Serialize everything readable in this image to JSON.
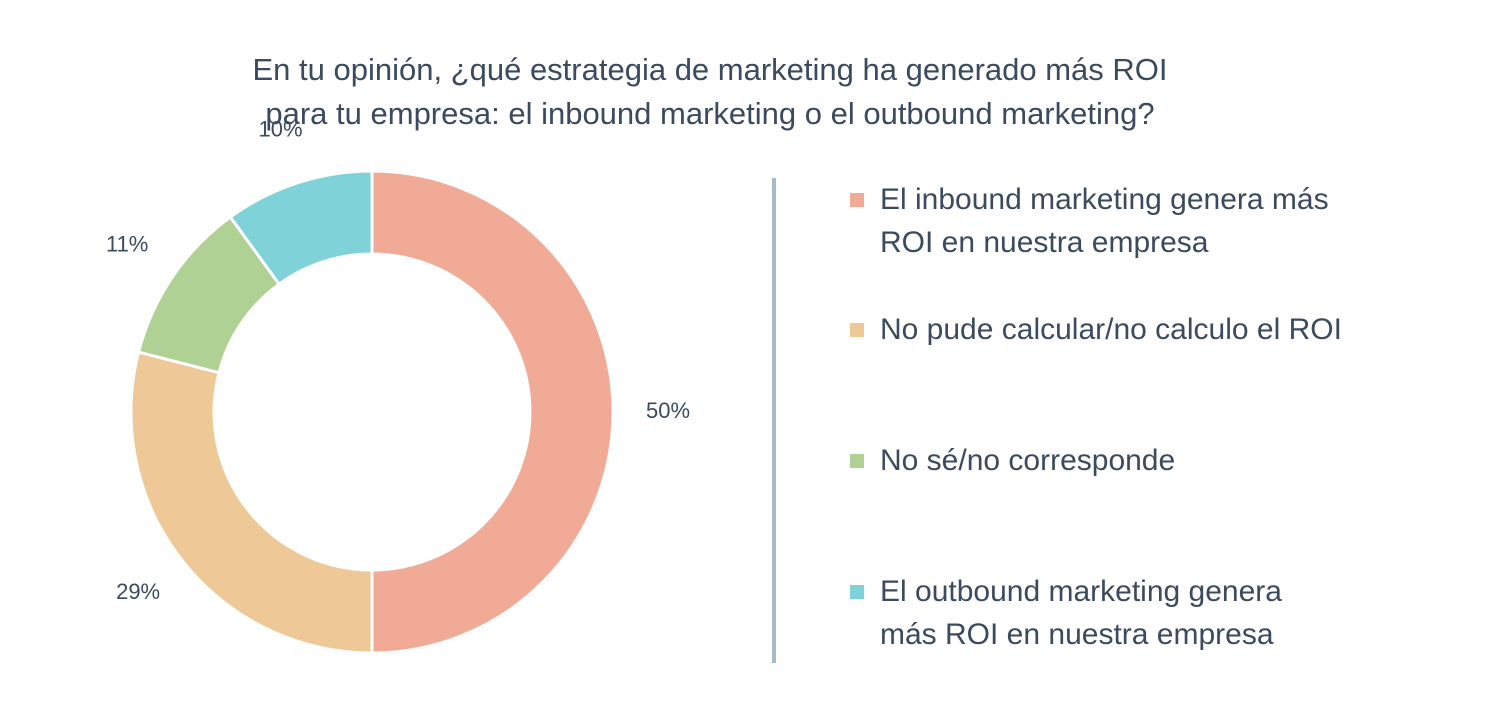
{
  "chart_data": {
    "type": "pie",
    "title_lines": [
      "En tu opinión, ¿qué estrategia de marketing ha generado más ROI",
      "para tu empresa: el inbound marketing o el outbound marketing?"
    ],
    "slices": [
      {
        "label": "El inbound marketing genera más\nROI en nuestra empresa",
        "value": 50,
        "value_label": "50%",
        "color": "#f0aa96"
      },
      {
        "label": "No pude calcular/no calculo el ROI",
        "value": 29,
        "value_label": "29%",
        "color": "#eec896"
      },
      {
        "label": "No sé/no corresponde",
        "value": 11,
        "value_label": "11%",
        "color": "#afd294"
      },
      {
        "label": "El outbound marketing genera\nmás ROI en nuestra empresa",
        "value": 10,
        "value_label": "10%",
        "color": "#7fd3d8"
      }
    ],
    "legend_placement": "right"
  }
}
